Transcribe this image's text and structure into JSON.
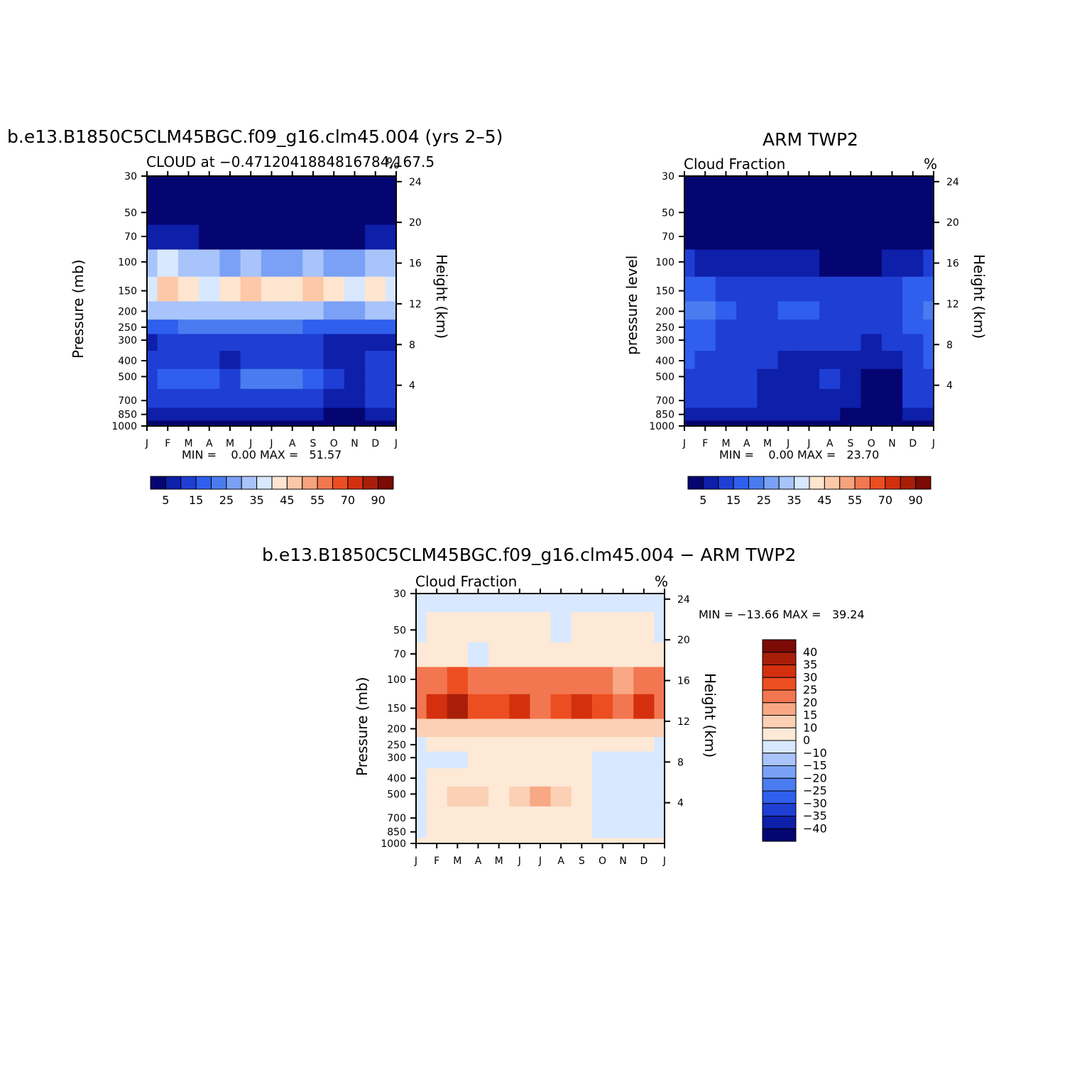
{
  "page": {
    "background": "#ffffff"
  },
  "panels": {
    "model": {
      "title": "b.e13.B1850C5CLM45BGC.f09_g16.clm45.004 (yrs 2–5)",
      "subtitle_left": "CLOUD at −0.47120418848167",
      "subtitle_tail": "84,167.5",
      "units": "%",
      "left_axis_label": "Pressure (mb)",
      "right_axis_label": "Height (km)",
      "minmax_text": "MIN =    0.00 MAX =   51.57"
    },
    "obs": {
      "title": "ARM TWP2",
      "subtitle_left": "Cloud Fraction",
      "units": "%",
      "left_axis_label": "pressure level",
      "right_axis_label": "Height (km)",
      "minmax_text": "MIN =    0.00 MAX =   23.70"
    },
    "diff": {
      "title": "b.e13.B1850C5CLM45BGC.f09_g16.clm45.004 − ARM TWP2",
      "subtitle_left": "Cloud Fraction",
      "units": "%",
      "left_axis_label": "Pressure (mb)",
      "right_axis_label": "Height (km)",
      "minmax_text": "MIN = −13.66 MAX =   39.24"
    }
  },
  "chart_data": [
    {
      "type": "heatmap",
      "panel": "model",
      "x_categories": [
        "J",
        "F",
        "M",
        "A",
        "M",
        "J",
        "J",
        "A",
        "S",
        "O",
        "N",
        "D",
        "J"
      ],
      "pressure_levels_mb": [
        1000,
        850,
        700,
        500,
        400,
        300,
        250,
        200,
        150,
        100,
        70,
        50,
        30
      ],
      "height_ticks_km": [
        4,
        8,
        12,
        16,
        20,
        24
      ],
      "contour_levels": [
        5,
        10,
        15,
        20,
        25,
        30,
        35,
        40,
        45,
        50,
        55,
        60,
        70,
        80,
        90
      ],
      "colorbar_labels": [
        "5",
        "15",
        "25",
        "35",
        "45",
        "55",
        "70",
        "90"
      ],
      "colors": [
        "#040571",
        "#0e1fa9",
        "#1f3ed4",
        "#2f5fec",
        "#4a7cf0",
        "#7aa1f6",
        "#a8c4fb",
        "#d8e8ff",
        "#fde5d0",
        "#fcc8a8",
        "#f7a37d",
        "#f27750",
        "#ec4e22",
        "#d4300e",
        "#a81e09",
        "#7c0a05"
      ],
      "min": 0.0,
      "max": 51.57,
      "values_percent_by_month": [
        [
          2,
          2,
          2,
          2,
          2,
          2,
          2,
          2,
          2,
          2,
          2,
          2,
          2
        ],
        [
          5,
          8,
          8,
          8,
          8,
          8,
          8,
          8,
          6,
          3,
          3,
          8,
          5
        ],
        [
          10,
          10,
          12,
          12,
          12,
          12,
          12,
          12,
          10,
          6,
          5,
          10,
          10
        ],
        [
          14,
          16,
          18,
          16,
          14,
          20,
          22,
          20,
          16,
          10,
          8,
          12,
          14
        ],
        [
          10,
          12,
          14,
          12,
          8,
          12,
          14,
          14,
          12,
          6,
          5,
          10,
          10
        ],
        [
          8,
          10,
          12,
          12,
          10,
          12,
          12,
          12,
          10,
          6,
          6,
          8,
          8
        ],
        [
          18,
          18,
          20,
          20,
          20,
          20,
          20,
          20,
          18,
          16,
          16,
          18,
          18
        ],
        [
          30,
          30,
          32,
          30,
          30,
          32,
          34,
          32,
          30,
          28,
          28,
          30,
          30
        ],
        [
          38,
          48,
          44,
          38,
          40,
          45,
          40,
          40,
          46,
          40,
          36,
          44,
          38
        ],
        [
          30,
          36,
          34,
          30,
          28,
          30,
          28,
          28,
          30,
          28,
          26,
          30,
          30
        ],
        [
          6,
          6,
          6,
          4,
          4,
          4,
          3,
          4,
          4,
          4,
          4,
          6,
          6
        ],
        [
          1,
          1,
          1,
          1,
          1,
          1,
          1,
          1,
          1,
          1,
          1,
          1,
          1
        ],
        [
          0,
          0,
          0,
          0,
          0,
          0,
          0,
          0,
          0,
          0,
          0,
          0,
          0
        ]
      ]
    },
    {
      "type": "heatmap",
      "panel": "obs",
      "x_categories": [
        "J",
        "F",
        "M",
        "A",
        "M",
        "J",
        "J",
        "A",
        "S",
        "O",
        "N",
        "D",
        "J"
      ],
      "pressure_levels_mb": [
        1000,
        850,
        700,
        500,
        400,
        300,
        250,
        200,
        150,
        100,
        70,
        50,
        30
      ],
      "height_ticks_km": [
        4,
        8,
        12,
        16,
        20,
        24
      ],
      "contour_levels": [
        5,
        10,
        15,
        20,
        25,
        30,
        35,
        40,
        45,
        50,
        55,
        60,
        70,
        80,
        90
      ],
      "colorbar_labels": [
        "5",
        "15",
        "25",
        "35",
        "45",
        "55",
        "70",
        "90"
      ],
      "colors": [
        "#040571",
        "#0e1fa9",
        "#1f3ed4",
        "#2f5fec",
        "#4a7cf0",
        "#7aa1f6",
        "#a8c4fb",
        "#d8e8ff",
        "#fde5d0",
        "#fcc8a8",
        "#f7a37d",
        "#f27750",
        "#ec4e22",
        "#d4300e",
        "#a81e09",
        "#7c0a05"
      ],
      "min": 0.0,
      "max": 23.7,
      "values_percent_by_month": [
        [
          3,
          3,
          3,
          3,
          3,
          3,
          3,
          3,
          3,
          3,
          3,
          3,
          3
        ],
        [
          8,
          6,
          6,
          6,
          6,
          6,
          6,
          6,
          4,
          3,
          3,
          6,
          8
        ],
        [
          12,
          10,
          10,
          10,
          8,
          8,
          8,
          8,
          6,
          3,
          3,
          10,
          12
        ],
        [
          14,
          12,
          12,
          10,
          8,
          8,
          8,
          10,
          8,
          4,
          4,
          12,
          14
        ],
        [
          16,
          14,
          14,
          12,
          10,
          8,
          8,
          8,
          8,
          6,
          8,
          12,
          16
        ],
        [
          18,
          16,
          12,
          12,
          10,
          10,
          10,
          10,
          10,
          8,
          10,
          14,
          18
        ],
        [
          18,
          18,
          14,
          14,
          12,
          12,
          12,
          12,
          12,
          10,
          12,
          16,
          18
        ],
        [
          20,
          20,
          16,
          14,
          14,
          16,
          16,
          14,
          12,
          12,
          14,
          18,
          20
        ],
        [
          16,
          16,
          14,
          14,
          14,
          14,
          14,
          14,
          12,
          12,
          14,
          16,
          16
        ],
        [
          10,
          8,
          6,
          5,
          5,
          5,
          5,
          4,
          4,
          4,
          5,
          8,
          10
        ],
        [
          2,
          2,
          2,
          2,
          2,
          2,
          2,
          2,
          2,
          2,
          2,
          2,
          2
        ],
        [
          0,
          0,
          0,
          0,
          0,
          0,
          0,
          0,
          0,
          0,
          0,
          0,
          0
        ],
        [
          0,
          0,
          0,
          0,
          0,
          0,
          0,
          0,
          0,
          0,
          0,
          0,
          0
        ]
      ]
    },
    {
      "type": "heatmap",
      "panel": "diff",
      "x_categories": [
        "J",
        "F",
        "M",
        "A",
        "M",
        "J",
        "J",
        "A",
        "S",
        "O",
        "N",
        "D",
        "J"
      ],
      "pressure_levels_mb": [
        1000,
        850,
        700,
        500,
        400,
        300,
        250,
        200,
        150,
        100,
        70,
        50,
        30
      ],
      "height_ticks_km": [
        4,
        8,
        12,
        16,
        20,
        24
      ],
      "contour_levels": [
        -40,
        -35,
        -30,
        -25,
        -20,
        -15,
        -10,
        0,
        10,
        15,
        20,
        25,
        30,
        35,
        40
      ],
      "colorbar_labels": [
        "40",
        "35",
        "30",
        "25",
        "20",
        "15",
        "10",
        "0",
        "−10",
        "−15",
        "−20",
        "−25",
        "−30",
        "−35",
        "−40"
      ],
      "colors": [
        "#040571",
        "#0e1fa9",
        "#1f3ed4",
        "#2f5fec",
        "#4a7cf0",
        "#7aa1f6",
        "#a8c4fb",
        "#d8e8ff",
        "#fde9d6",
        "#fcd0b4",
        "#f8a884",
        "#f27750",
        "#ec4e22",
        "#d4300e",
        "#a81e09",
        "#7c0a05"
      ],
      "min": -13.66,
      "max": 39.24,
      "values_percent_by_month": [
        [
          2,
          2,
          2,
          2,
          2,
          2,
          2,
          2,
          2,
          2,
          2,
          2,
          2
        ],
        [
          -2,
          2,
          2,
          2,
          2,
          2,
          2,
          2,
          2,
          -2,
          -2,
          -2,
          -2
        ],
        [
          -2,
          2,
          2,
          2,
          2,
          4,
          4,
          4,
          2,
          -2,
          -2,
          -2,
          -2
        ],
        [
          -2,
          4,
          10,
          10,
          6,
          12,
          16,
          12,
          8,
          -2,
          -2,
          -2,
          -2
        ],
        [
          -2,
          2,
          4,
          4,
          2,
          4,
          6,
          6,
          4,
          -2,
          -2,
          -2,
          -2
        ],
        [
          -6,
          -2,
          -2,
          2,
          2,
          2,
          2,
          2,
          2,
          -2,
          -2,
          -2,
          -2
        ],
        [
          -2,
          2,
          4,
          6,
          6,
          6,
          6,
          6,
          6,
          6,
          4,
          2,
          -2
        ],
        [
          10,
          12,
          14,
          14,
          14,
          14,
          14,
          14,
          14,
          14,
          14,
          12,
          10
        ],
        [
          22,
          32,
          36,
          28,
          26,
          30,
          24,
          28,
          34,
          26,
          20,
          30,
          22
        ],
        [
          20,
          24,
          26,
          22,
          20,
          22,
          20,
          22,
          24,
          22,
          18,
          24,
          20
        ],
        [
          4,
          4,
          2,
          -2,
          2,
          4,
          4,
          4,
          4,
          4,
          4,
          4,
          4
        ],
        [
          -2,
          2,
          2,
          2,
          2,
          2,
          2,
          -2,
          2,
          2,
          2,
          2,
          -2
        ],
        [
          -2,
          -2,
          -2,
          -2,
          -2,
          -2,
          -2,
          -2,
          -2,
          -2,
          -2,
          -2,
          -2
        ]
      ]
    }
  ]
}
